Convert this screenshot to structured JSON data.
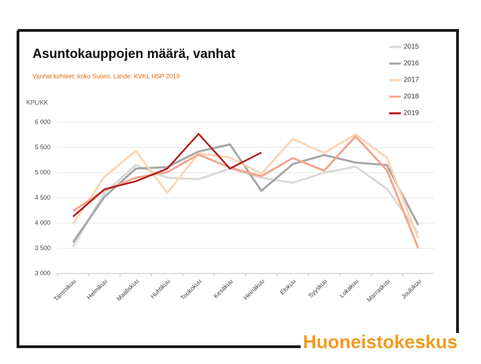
{
  "chart_data": {
    "type": "line",
    "title": "Asuntokauppojen määrä, vanhat",
    "subtitle": "Vanhat kohteet, koko Suomi. Lähde: KVKL HSP 2019",
    "y_label": "KPL/KK",
    "brand": "Huoneistokeskus",
    "categories": [
      "Tammikuu",
      "Helmikuu",
      "Maaliskuu",
      "Huhtikuu",
      "Toukokuu",
      "Kesäkuu",
      "Heinäkuu",
      "Elokuu",
      "Syyskuu",
      "Lokakuu",
      "Marraskuu",
      "Joulukuu"
    ],
    "series": [
      {
        "name": "2015",
        "color": "#d9d9d9",
        "values": [
          3530,
          4600,
          5150,
          4900,
          4870,
          5080,
          4900,
          4800,
          5000,
          5120,
          4680,
          3800
        ]
      },
      {
        "name": "2016",
        "color": "#a6a6a6",
        "values": [
          3620,
          4520,
          5080,
          5110,
          5420,
          5560,
          4640,
          5170,
          5350,
          5200,
          5150,
          3960
        ]
      },
      {
        "name": "2017",
        "color": "#fcd5b4",
        "values": [
          3980,
          4920,
          5430,
          4600,
          5380,
          5300,
          4980,
          5670,
          5390,
          5760,
          5300,
          3700
        ]
      },
      {
        "name": "2018",
        "color": "#f2a68a",
        "values": [
          4240,
          4650,
          4900,
          5010,
          5360,
          5100,
          4930,
          5290,
          5040,
          5720,
          5050,
          3500
        ]
      },
      {
        "name": "2019",
        "color": "#b01c1c",
        "values": [
          4130,
          4670,
          4830,
          5080,
          5770,
          5080,
          5400,
          null,
          null,
          null,
          null,
          null
        ]
      }
    ],
    "ylim": [
      3000,
      6000
    ],
    "yticks": [
      {
        "value": 3000,
        "label": "3 000"
      },
      {
        "value": 3500,
        "label": "3 500"
      },
      {
        "value": 4000,
        "label": "4 000"
      },
      {
        "value": 4500,
        "label": "4 500"
      },
      {
        "value": 5000,
        "label": "5 000"
      },
      {
        "value": 5500,
        "label": "5 500"
      },
      {
        "value": 6000,
        "label": "6 000"
      }
    ],
    "grid": true,
    "legend": "right"
  }
}
